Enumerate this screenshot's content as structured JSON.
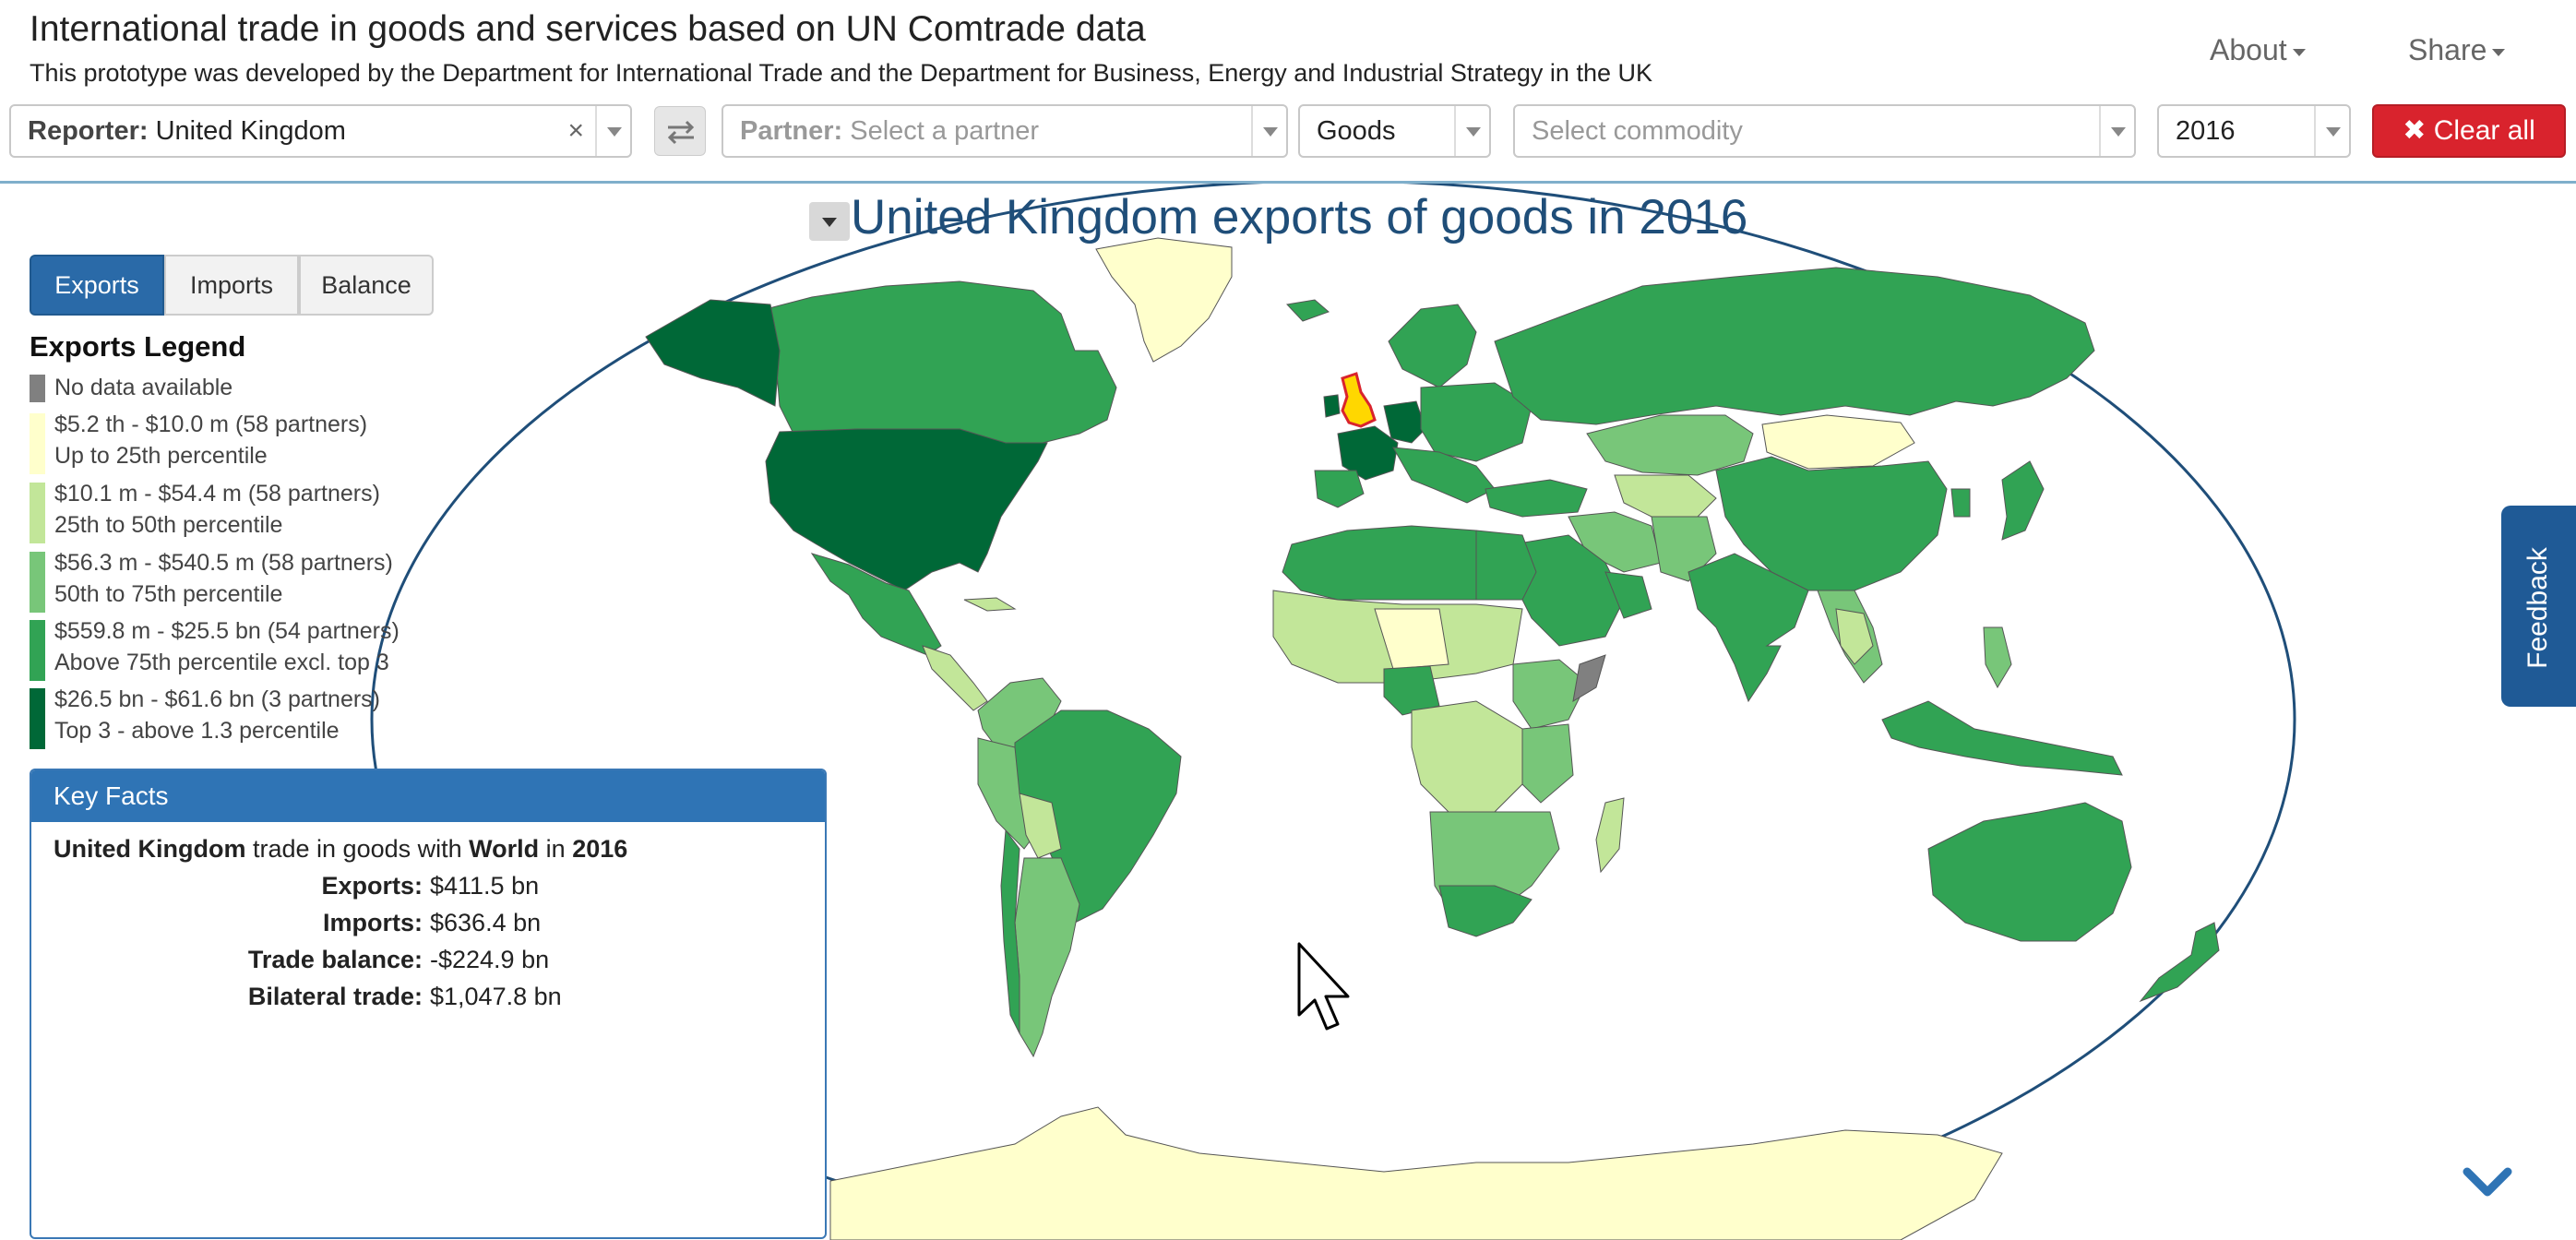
{
  "header": {
    "title": "International trade in goods and services based on UN Comtrade data",
    "subtitle": "This prototype was developed by the Department for International Trade and the Department for Business, Energy and Industrial Strategy in the UK",
    "nav": {
      "about": "About",
      "share": "Share"
    }
  },
  "filters": {
    "reporter_label": "Reporter:",
    "reporter_value": "United Kingdom",
    "reporter_clear": "×",
    "partner_label": "Partner:",
    "partner_placeholder": "Select a partner",
    "type_value": "Goods",
    "commodity_placeholder": "Select commodity",
    "year_value": "2016",
    "clear_all": "Clear all",
    "clear_all_icon": "✖"
  },
  "map": {
    "title": "United Kingdom exports of goods in 2016",
    "colors": {
      "no_data": "#808080",
      "q1": "#ffffcc",
      "q2": "#c2e699",
      "q3": "#78c679",
      "q4": "#31a354",
      "top3": "#006837",
      "reporter": "#d9232d",
      "reporter_fill": "#ffd700",
      "ocean_outline": "#1f4e79"
    }
  },
  "flow_buttons": [
    "Exports",
    "Imports",
    "Balance"
  ],
  "legend": {
    "title": "Exports Legend",
    "items": [
      {
        "line1": "No data available",
        "line2": "",
        "color": "#808080"
      },
      {
        "line1": "$5.2 th - $10.0 m (58 partners)",
        "line2": "Up to 25th percentile",
        "color": "#ffffcc"
      },
      {
        "line1": "$10.1 m - $54.4 m (58 partners)",
        "line2": "25th to 50th percentile",
        "color": "#c2e699"
      },
      {
        "line1": "$56.3 m - $540.5 m (58 partners)",
        "line2": "50th to 75th percentile",
        "color": "#78c679"
      },
      {
        "line1": "$559.8 m - $25.5 bn (54 partners)",
        "line2": "Above 75th percentile excl. top 3",
        "color": "#31a354"
      },
      {
        "line1": "$26.5 bn - $61.6 bn (3 partners)",
        "line2": "Top 3 - above 1.3 percentile",
        "color": "#006837"
      }
    ]
  },
  "key_facts": {
    "heading": "Key Facts",
    "reporter": "United Kingdom",
    "trade_in": "trade in goods with",
    "partner": "World",
    "in_word": "in",
    "year": "2016",
    "rows": [
      {
        "label": "Exports:",
        "value": "$411.5 bn"
      },
      {
        "label": "Imports:",
        "value": "$636.4 bn"
      },
      {
        "label": "Trade balance:",
        "value": "-$224.9 bn"
      },
      {
        "label": "Bilateral trade:",
        "value": "$1,047.8 bn"
      }
    ]
  },
  "feedback": "Feedback",
  "icons": [
    "swap-icon",
    "close-icon",
    "chevron-down-icon",
    "caret-down-icon",
    "cursor-icon"
  ]
}
